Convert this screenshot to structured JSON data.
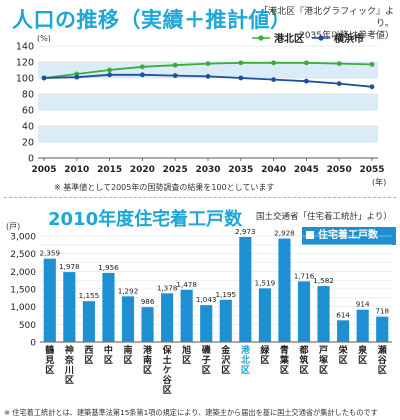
{
  "title_top": "人口の推移（実績＋推計値）",
  "subtitle_top_line1": "「港北区『港北グラフィック』より。",
  "subtitle_top_line2": "2035年以降は参考値）",
  "top_unit": "(%)",
  "top_year_unit": "(年)",
  "top_note": "※ 基準値として2005年の国勢調査の結果を100としています",
  "title_bottom": "2010年度住宅着工戸数",
  "subtitle_bottom": "国土交通省「住宅着工統計」より）",
  "bottom_unit": "(戸)",
  "bottom_note": "※ 住宅着工統計とは、建築基準法第15条第1項の規定により、建築主から届出を基に国土交通省が集計したものです",
  "legend_bottom": "住宅着工戸数",
  "colors": {
    "accent": "#1ea6d6",
    "kohoku": "#3cab3c",
    "yokohama": "#1f4f9a",
    "band": "#d9ecf8",
    "bar": "#1e8fd0",
    "bar_highlight": "#1e8fd0"
  },
  "chart_data": [
    {
      "type": "line",
      "x": [
        2005,
        2010,
        2015,
        2020,
        2025,
        2030,
        2035,
        2040,
        2045,
        2050,
        2055
      ],
      "series": [
        {
          "name": "港北区",
          "values": [
            100,
            105,
            110,
            114,
            116,
            118,
            119,
            119,
            119,
            118,
            117
          ]
        },
        {
          "name": "横浜市",
          "values": [
            100,
            101,
            104,
            104,
            103,
            102,
            100,
            98,
            96,
            93,
            89
          ]
        }
      ],
      "ylim": [
        0,
        140
      ],
      "yticks": [
        0,
        20,
        40,
        60,
        80,
        100,
        120,
        140
      ],
      "grid": true,
      "legend": "top-right"
    },
    {
      "type": "bar",
      "categories": [
        "鶴見区",
        "神奈川区",
        "西区",
        "中区",
        "南区",
        "港南区",
        "保土ケ谷区",
        "旭区",
        "磯子区",
        "金沢区",
        "港北区",
        "緑区",
        "青葉区",
        "都筑区",
        "戸塚区",
        "栄区",
        "泉区",
        "瀬谷区"
      ],
      "category_labels": [
        "鶴\n見\n区",
        "神\n奈\n川\n区",
        "西\n区",
        "中\n区",
        "南\n区",
        "港\n南\n区",
        "保\n土\nケ\n谷\n区",
        "旭\n区",
        "磯\n子\n区",
        "金\n沢\n区",
        "港\n北\n区",
        "緑\n区",
        "青\n葉\n区",
        "都\n筑\n区",
        "戸\n塚\n区",
        "栄\n区",
        "泉\n区",
        "瀬\n谷\n区"
      ],
      "values": [
        2359,
        1978,
        1155,
        1956,
        1292,
        986,
        1378,
        1478,
        1043,
        1195,
        2973,
        1519,
        2928,
        1716,
        1582,
        614,
        914,
        718
      ],
      "value_labels": [
        "2,359",
        "1,978",
        "1,155",
        "1,956",
        "1,292",
        "986",
        "1,378",
        "1,478",
        "1,043",
        "1,195",
        "2,973",
        "1,519",
        "2,928",
        "1,716",
        "1,582",
        "614",
        "914",
        "718"
      ],
      "highlight": "港北区",
      "ylim": [
        0,
        3000
      ],
      "yticks": [
        0,
        250,
        500,
        750,
        1000,
        1250,
        1500,
        1750,
        2000,
        2250,
        2500,
        2750,
        3000
      ],
      "ytick_labels": [
        "0",
        "250",
        "500",
        "750",
        "1,000",
        "1,250",
        "1,500",
        "1,750",
        "2,000",
        "2,250",
        "2,500",
        "2,750",
        "3,000"
      ],
      "grid": true,
      "legend": "top-right"
    }
  ]
}
